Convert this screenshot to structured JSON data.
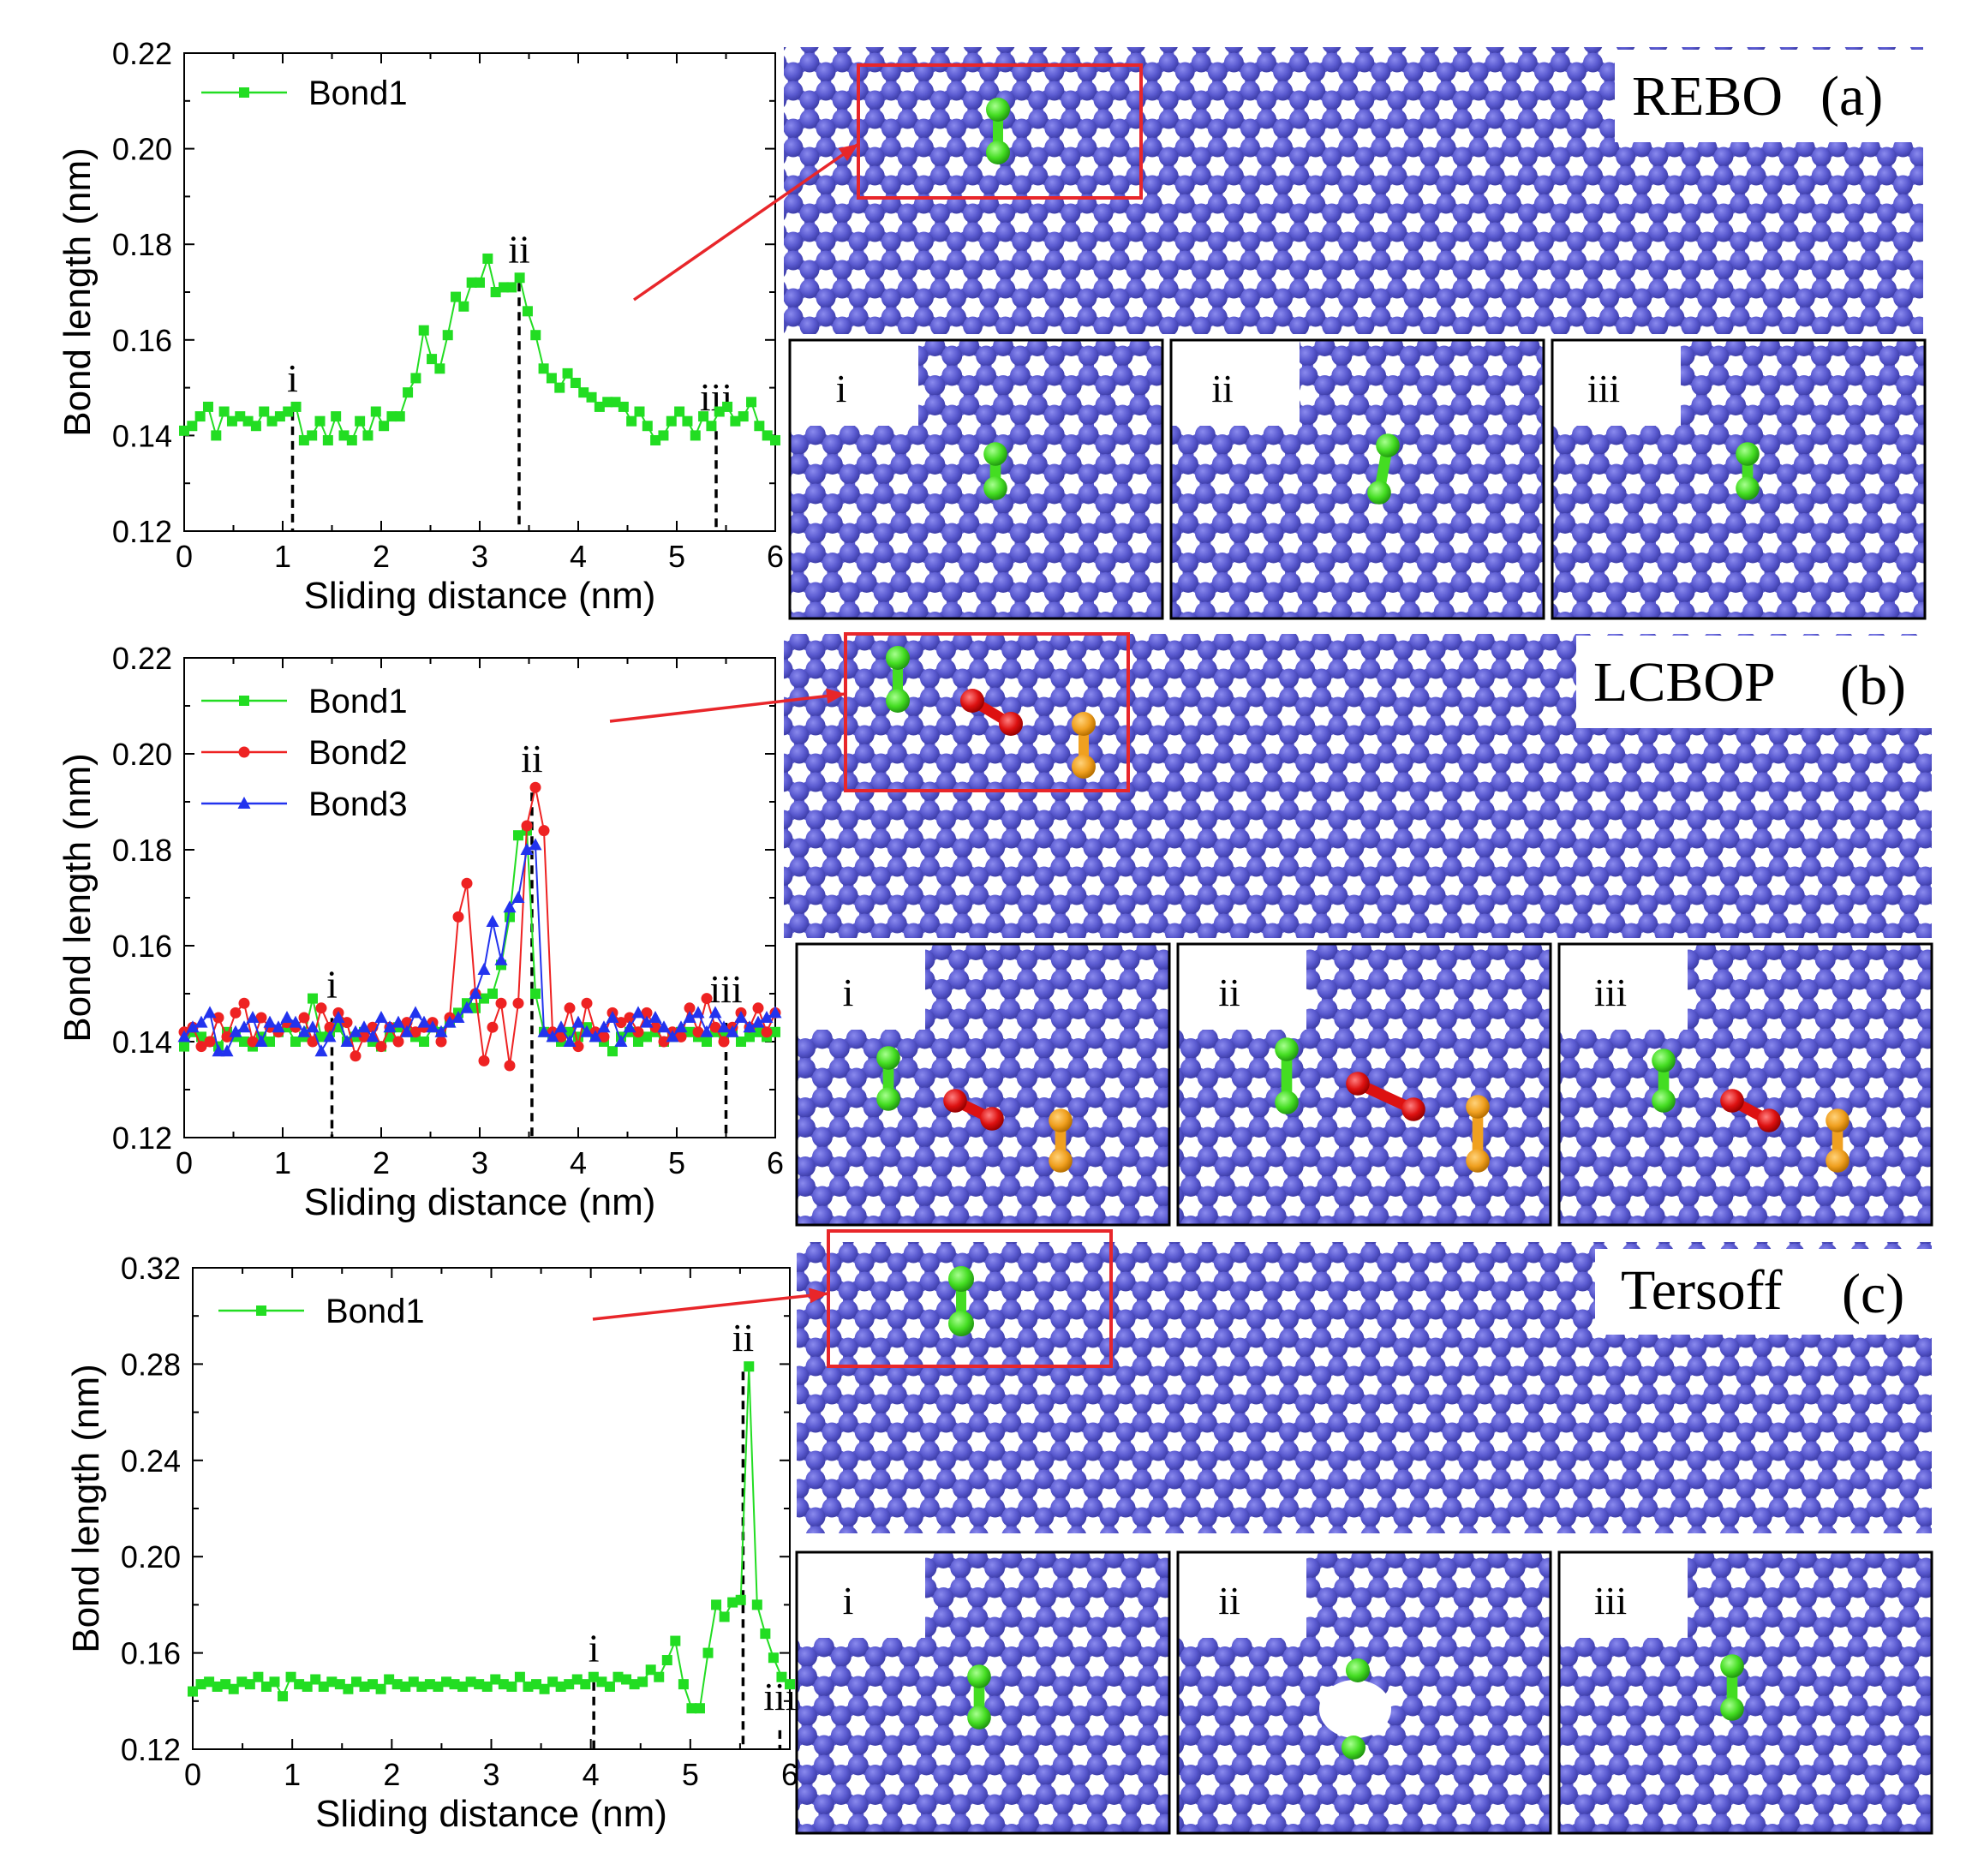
{
  "colors": {
    "bond1": "#22dd22",
    "bond2": "#ee2222",
    "bond3": "#2233ee",
    "atom": "#5a5ad0",
    "atom_dark": "#4646b8",
    "highlight_box": "#e8262a",
    "bond2_atoms": "#dd1111",
    "bond3_atoms": "#f0a020"
  },
  "chart_data": [
    {
      "type": "line",
      "panel": "a",
      "potential": "REBO",
      "panel_tag": "(a)",
      "xlabel": "Sliding distance (nm)",
      "ylabel": "Bond length (nm)",
      "xlim": [
        0,
        6
      ],
      "ylim": [
        0.12,
        0.22
      ],
      "xticks": [
        "0",
        "1",
        "2",
        "3",
        "4",
        "5",
        "6"
      ],
      "yticks": [
        "0.12",
        "0.14",
        "0.16",
        "0.18",
        "0.20",
        "0.22"
      ],
      "markers": [
        {
          "label": "i",
          "x": 1.1,
          "y": 0.146
        },
        {
          "label": "ii",
          "x": 3.4,
          "y": 0.173
        },
        {
          "label": "iii",
          "x": 5.4,
          "y": 0.142
        }
      ],
      "series": [
        {
          "name": "Bond1",
          "color": "#22dd22",
          "marker": "square",
          "values": [
            0.141,
            0.142,
            0.144,
            0.146,
            0.14,
            0.145,
            0.143,
            0.144,
            0.143,
            0.142,
            0.145,
            0.143,
            0.144,
            0.145,
            0.146,
            0.139,
            0.14,
            0.143,
            0.139,
            0.144,
            0.14,
            0.139,
            0.143,
            0.14,
            0.145,
            0.142,
            0.144,
            0.144,
            0.149,
            0.152,
            0.162,
            0.156,
            0.154,
            0.161,
            0.169,
            0.167,
            0.172,
            0.172,
            0.177,
            0.17,
            0.171,
            0.171,
            0.173,
            0.166,
            0.161,
            0.154,
            0.152,
            0.15,
            0.153,
            0.151,
            0.149,
            0.148,
            0.146,
            0.147,
            0.147,
            0.146,
            0.143,
            0.145,
            0.142,
            0.139,
            0.14,
            0.143,
            0.145,
            0.143,
            0.14,
            0.144,
            0.142,
            0.145,
            0.146,
            0.143,
            0.144,
            0.147,
            0.142,
            0.14,
            0.139
          ]
        }
      ]
    },
    {
      "type": "line",
      "panel": "b",
      "potential": "LCBOP",
      "panel_tag": "(b)",
      "xlabel": "Sliding distance (nm)",
      "ylabel": "Bond length (nm)",
      "xlim": [
        0,
        6
      ],
      "ylim": [
        0.12,
        0.22
      ],
      "xticks": [
        "0",
        "1",
        "2",
        "3",
        "4",
        "5",
        "6"
      ],
      "yticks": [
        "0.12",
        "0.14",
        "0.16",
        "0.18",
        "0.20",
        "0.22"
      ],
      "markers": [
        {
          "label": "i",
          "x": 1.5,
          "y": 0.146
        },
        {
          "label": "ii",
          "x": 3.53,
          "y": 0.193
        },
        {
          "label": "iii",
          "x": 5.5,
          "y": 0.145
        }
      ],
      "series": [
        {
          "name": "Bond1",
          "color": "#22dd22",
          "marker": "square",
          "values": [
            0.139,
            0.142,
            0.141,
            0.14,
            0.139,
            0.142,
            0.141,
            0.14,
            0.139,
            0.141,
            0.14,
            0.142,
            0.143,
            0.14,
            0.141,
            0.149,
            0.141,
            0.142,
            0.143,
            0.14,
            0.141,
            0.142,
            0.14,
            0.139,
            0.141,
            0.143,
            0.142,
            0.141,
            0.14,
            0.143,
            0.142,
            0.144,
            0.146,
            0.148,
            0.147,
            0.149,
            0.15,
            0.156,
            0.166,
            0.183,
            0.184,
            0.15,
            0.142,
            0.141,
            0.14,
            0.142,
            0.141,
            0.143,
            0.141,
            0.14,
            0.138,
            0.141,
            0.142,
            0.14,
            0.141,
            0.142,
            0.14,
            0.141,
            0.142,
            0.142,
            0.141,
            0.14,
            0.142,
            0.141,
            0.142,
            0.14,
            0.141,
            0.142,
            0.141,
            0.142
          ]
        },
        {
          "name": "Bond2",
          "color": "#ee2222",
          "marker": "circle",
          "values": [
            0.142,
            0.143,
            0.139,
            0.14,
            0.145,
            0.141,
            0.146,
            0.148,
            0.14,
            0.145,
            0.143,
            0.142,
            0.144,
            0.143,
            0.145,
            0.14,
            0.147,
            0.143,
            0.146,
            0.144,
            0.137,
            0.141,
            0.143,
            0.139,
            0.143,
            0.14,
            0.144,
            0.142,
            0.143,
            0.144,
            0.14,
            0.145,
            0.166,
            0.173,
            0.15,
            0.136,
            0.143,
            0.148,
            0.135,
            0.148,
            0.185,
            0.193,
            0.184,
            0.142,
            0.141,
            0.147,
            0.139,
            0.148,
            0.142,
            0.141,
            0.146,
            0.144,
            0.145,
            0.142,
            0.146,
            0.143,
            0.14,
            0.142,
            0.141,
            0.147,
            0.142,
            0.149,
            0.143,
            0.14,
            0.143,
            0.146,
            0.143,
            0.147,
            0.142,
            0.146
          ]
        },
        {
          "name": "Bond3",
          "color": "#2233ee",
          "marker": "triangle",
          "values": [
            0.141,
            0.143,
            0.144,
            0.146,
            0.138,
            0.138,
            0.142,
            0.143,
            0.145,
            0.14,
            0.144,
            0.143,
            0.145,
            0.144,
            0.142,
            0.143,
            0.138,
            0.141,
            0.145,
            0.14,
            0.142,
            0.143,
            0.141,
            0.145,
            0.143,
            0.144,
            0.142,
            0.146,
            0.144,
            0.143,
            0.142,
            0.144,
            0.145,
            0.147,
            0.15,
            0.155,
            0.165,
            0.157,
            0.168,
            0.17,
            0.18,
            0.181,
            0.142,
            0.141,
            0.143,
            0.14,
            0.144,
            0.142,
            0.141,
            0.143,
            0.145,
            0.14,
            0.143,
            0.146,
            0.144,
            0.145,
            0.143,
            0.141,
            0.143,
            0.145,
            0.146,
            0.142,
            0.146,
            0.143,
            0.142,
            0.145,
            0.143,
            0.144,
            0.145,
            0.146
          ]
        }
      ]
    },
    {
      "type": "line",
      "panel": "c",
      "potential": "Tersoff",
      "panel_tag": "(c)",
      "xlabel": "Sliding distance (nm)",
      "ylabel": "Bond length (nm)",
      "xlim": [
        0,
        6
      ],
      "ylim": [
        0.12,
        0.32
      ],
      "xticks": [
        "0",
        "1",
        "2",
        "3",
        "4",
        "5",
        "6"
      ],
      "yticks": [
        "0.12",
        "0.16",
        "0.20",
        "0.24",
        "0.28",
        "0.32"
      ],
      "markers": [
        {
          "label": "i",
          "x": 4.03,
          "y": 0.15
        },
        {
          "label": "ii",
          "x": 5.53,
          "y": 0.279
        },
        {
          "label": "iii",
          "x": 5.9,
          "y": 0.13
        }
      ],
      "series": [
        {
          "name": "Bond1",
          "color": "#22dd22",
          "marker": "square",
          "values": [
            0.144,
            0.147,
            0.148,
            0.146,
            0.147,
            0.145,
            0.148,
            0.147,
            0.15,
            0.146,
            0.148,
            0.142,
            0.15,
            0.147,
            0.146,
            0.149,
            0.146,
            0.148,
            0.147,
            0.145,
            0.148,
            0.146,
            0.147,
            0.145,
            0.149,
            0.147,
            0.146,
            0.148,
            0.146,
            0.147,
            0.146,
            0.148,
            0.147,
            0.146,
            0.148,
            0.147,
            0.146,
            0.149,
            0.147,
            0.146,
            0.15,
            0.146,
            0.147,
            0.145,
            0.148,
            0.146,
            0.147,
            0.149,
            0.147,
            0.15,
            0.148,
            0.146,
            0.15,
            0.149,
            0.147,
            0.148,
            0.153,
            0.15,
            0.157,
            0.165,
            0.147,
            0.137,
            0.137,
            0.16,
            0.18,
            0.175,
            0.181,
            0.182,
            0.279,
            0.18,
            0.168,
            0.158,
            0.15,
            0.147
          ]
        }
      ]
    }
  ],
  "snapshot_labels": [
    "i",
    "ii",
    "iii"
  ]
}
